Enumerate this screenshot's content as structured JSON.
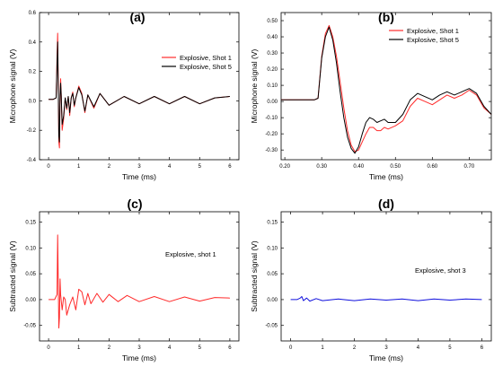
{
  "chart_data": [
    {
      "panel_label": "(a)",
      "type": "line",
      "xlabel": "Time (ms)",
      "ylabel": "Microphone signal (V)",
      "xlim": [
        -0.3,
        6.3
      ],
      "ylim": [
        -0.4,
        0.6
      ],
      "xticks": [
        0,
        1,
        2,
        3,
        4,
        5,
        6
      ],
      "yticks": [
        -0.4,
        -0.2,
        0.0,
        0.2,
        0.4,
        0.6
      ],
      "legend": "top-right",
      "series": [
        {
          "name": "Explosive, Shot 1",
          "color": "#ff2a2a",
          "x": [
            0.0,
            0.15,
            0.25,
            0.28,
            0.3,
            0.32,
            0.34,
            0.36,
            0.38,
            0.4,
            0.42,
            0.45,
            0.5,
            0.55,
            0.6,
            0.65,
            0.7,
            0.75,
            0.8,
            0.85,
            0.9,
            1.0,
            1.1,
            1.2,
            1.3,
            1.5,
            1.7,
            2.0,
            2.5,
            3.0,
            3.5,
            4.0,
            4.5,
            5.0,
            5.5,
            6.0
          ],
          "y": [
            0.01,
            0.01,
            0.02,
            0.3,
            0.46,
            0.1,
            -0.28,
            -0.32,
            0.05,
            0.15,
            0.04,
            -0.2,
            -0.12,
            0.02,
            -0.06,
            0.03,
            -0.1,
            0.02,
            0.06,
            -0.04,
            0.02,
            0.1,
            0.05,
            -0.08,
            0.04,
            -0.05,
            0.05,
            -0.03,
            0.03,
            -0.02,
            0.03,
            -0.02,
            0.03,
            -0.02,
            0.02,
            0.03
          ]
        },
        {
          "name": "Explosive, Shot 5",
          "color": "#000000",
          "x": [
            0.0,
            0.15,
            0.25,
            0.28,
            0.3,
            0.32,
            0.34,
            0.36,
            0.38,
            0.4,
            0.42,
            0.45,
            0.5,
            0.55,
            0.6,
            0.65,
            0.7,
            0.75,
            0.8,
            0.85,
            0.9,
            1.0,
            1.1,
            1.2,
            1.3,
            1.5,
            1.7,
            2.0,
            2.5,
            3.0,
            3.5,
            4.0,
            4.5,
            5.0,
            5.5,
            6.0
          ],
          "y": [
            0.01,
            0.01,
            0.02,
            0.25,
            0.4,
            0.08,
            -0.24,
            -0.28,
            0.04,
            0.12,
            0.03,
            -0.16,
            -0.1,
            0.02,
            -0.05,
            0.03,
            -0.08,
            0.02,
            0.05,
            -0.03,
            0.02,
            0.09,
            0.04,
            -0.07,
            0.04,
            -0.04,
            0.05,
            -0.03,
            0.03,
            -0.02,
            0.03,
            -0.02,
            0.03,
            -0.02,
            0.02,
            0.03
          ]
        }
      ]
    },
    {
      "panel_label": "(b)",
      "type": "line",
      "xlabel": "Time (ms)",
      "ylabel": "Microphone signal (V)",
      "xlim": [
        0.19,
        0.76
      ],
      "ylim": [
        -0.36,
        0.55
      ],
      "xticks": [
        0.2,
        0.3,
        0.4,
        0.5,
        0.6,
        0.7
      ],
      "yticks": [
        -0.3,
        -0.2,
        -0.1,
        0.0,
        0.1,
        0.2,
        0.3,
        0.4,
        0.5
      ],
      "legend": "top-right",
      "series": [
        {
          "name": "Explosive, Shot 1",
          "color": "#ff2a2a",
          "x": [
            0.19,
            0.25,
            0.28,
            0.29,
            0.3,
            0.31,
            0.32,
            0.33,
            0.34,
            0.35,
            0.36,
            0.37,
            0.38,
            0.39,
            0.4,
            0.41,
            0.42,
            0.43,
            0.44,
            0.45,
            0.46,
            0.47,
            0.48,
            0.5,
            0.52,
            0.54,
            0.56,
            0.58,
            0.6,
            0.62,
            0.64,
            0.66,
            0.68,
            0.7,
            0.72,
            0.74,
            0.76
          ],
          "y": [
            0.01,
            0.01,
            0.01,
            0.02,
            0.28,
            0.42,
            0.47,
            0.4,
            0.28,
            0.12,
            -0.04,
            -0.18,
            -0.27,
            -0.31,
            -0.3,
            -0.25,
            -0.2,
            -0.16,
            -0.16,
            -0.18,
            -0.18,
            -0.16,
            -0.17,
            -0.15,
            -0.12,
            -0.03,
            0.02,
            0.0,
            -0.02,
            0.01,
            0.04,
            0.02,
            0.04,
            0.07,
            0.04,
            -0.04,
            -0.08
          ]
        },
        {
          "name": "Explosive, Shot 5",
          "color": "#000000",
          "x": [
            0.19,
            0.25,
            0.28,
            0.29,
            0.3,
            0.31,
            0.32,
            0.33,
            0.34,
            0.35,
            0.36,
            0.37,
            0.38,
            0.39,
            0.4,
            0.41,
            0.42,
            0.43,
            0.44,
            0.45,
            0.46,
            0.47,
            0.48,
            0.5,
            0.52,
            0.54,
            0.56,
            0.58,
            0.6,
            0.62,
            0.64,
            0.66,
            0.68,
            0.7,
            0.72,
            0.74,
            0.76
          ],
          "y": [
            0.01,
            0.01,
            0.01,
            0.02,
            0.27,
            0.4,
            0.46,
            0.38,
            0.24,
            0.06,
            -0.1,
            -0.22,
            -0.29,
            -0.32,
            -0.28,
            -0.2,
            -0.13,
            -0.1,
            -0.11,
            -0.13,
            -0.12,
            -0.11,
            -0.13,
            -0.13,
            -0.08,
            0.01,
            0.05,
            0.03,
            0.01,
            0.04,
            0.06,
            0.04,
            0.06,
            0.08,
            0.05,
            -0.03,
            -0.08
          ]
        }
      ]
    },
    {
      "panel_label": "(c)",
      "type": "line",
      "xlabel": "Time (ms)",
      "ylabel": "Subtracted signal (V)",
      "xlim": [
        -0.3,
        6.3
      ],
      "ylim": [
        -0.08,
        0.17
      ],
      "xticks": [
        0,
        1,
        2,
        3,
        4,
        5,
        6
      ],
      "yticks": [
        -0.05,
        0.0,
        0.05,
        0.1,
        0.15
      ],
      "annotation": "Explosive, shot 1",
      "series": [
        {
          "color": "#ff2a2a",
          "x": [
            0.0,
            0.2,
            0.28,
            0.3,
            0.32,
            0.34,
            0.36,
            0.38,
            0.4,
            0.45,
            0.5,
            0.55,
            0.6,
            0.7,
            0.8,
            0.9,
            1.0,
            1.1,
            1.2,
            1.3,
            1.4,
            1.6,
            1.8,
            2.0,
            2.3,
            2.6,
            3.0,
            3.5,
            4.0,
            4.5,
            5.0,
            5.5,
            6.0
          ],
          "y": [
            0.0,
            0.0,
            0.01,
            0.125,
            0.03,
            -0.055,
            -0.035,
            0.04,
            0.01,
            -0.02,
            0.005,
            0.0,
            -0.03,
            -0.01,
            0.005,
            -0.02,
            0.02,
            0.015,
            -0.01,
            0.012,
            -0.008,
            0.012,
            -0.005,
            0.01,
            -0.004,
            0.008,
            -0.004,
            0.006,
            -0.004,
            0.005,
            -0.003,
            0.004,
            0.003
          ]
        }
      ]
    },
    {
      "panel_label": "(d)",
      "type": "line",
      "xlabel": "Time (ms)",
      "ylabel": "Subtracted signal (V)",
      "xlim": [
        -0.3,
        6.3
      ],
      "ylim": [
        -0.08,
        0.17
      ],
      "xticks": [
        0,
        1,
        2,
        3,
        4,
        5,
        6
      ],
      "yticks": [
        -0.05,
        0.0,
        0.05,
        0.1,
        0.15
      ],
      "annotation": "Explosive, shot 3",
      "series": [
        {
          "color": "#1010dd",
          "x": [
            0.0,
            0.2,
            0.3,
            0.35,
            0.4,
            0.5,
            0.6,
            0.8,
            1.0,
            1.5,
            2.0,
            2.5,
            3.0,
            3.5,
            4.0,
            4.5,
            5.0,
            5.5,
            6.0
          ],
          "y": [
            0.0,
            0.0,
            0.003,
            0.006,
            -0.002,
            0.003,
            -0.003,
            0.002,
            -0.002,
            0.001,
            -0.002,
            0.001,
            -0.001,
            0.001,
            -0.002,
            0.001,
            -0.001,
            0.001,
            0.0
          ]
        }
      ]
    }
  ]
}
